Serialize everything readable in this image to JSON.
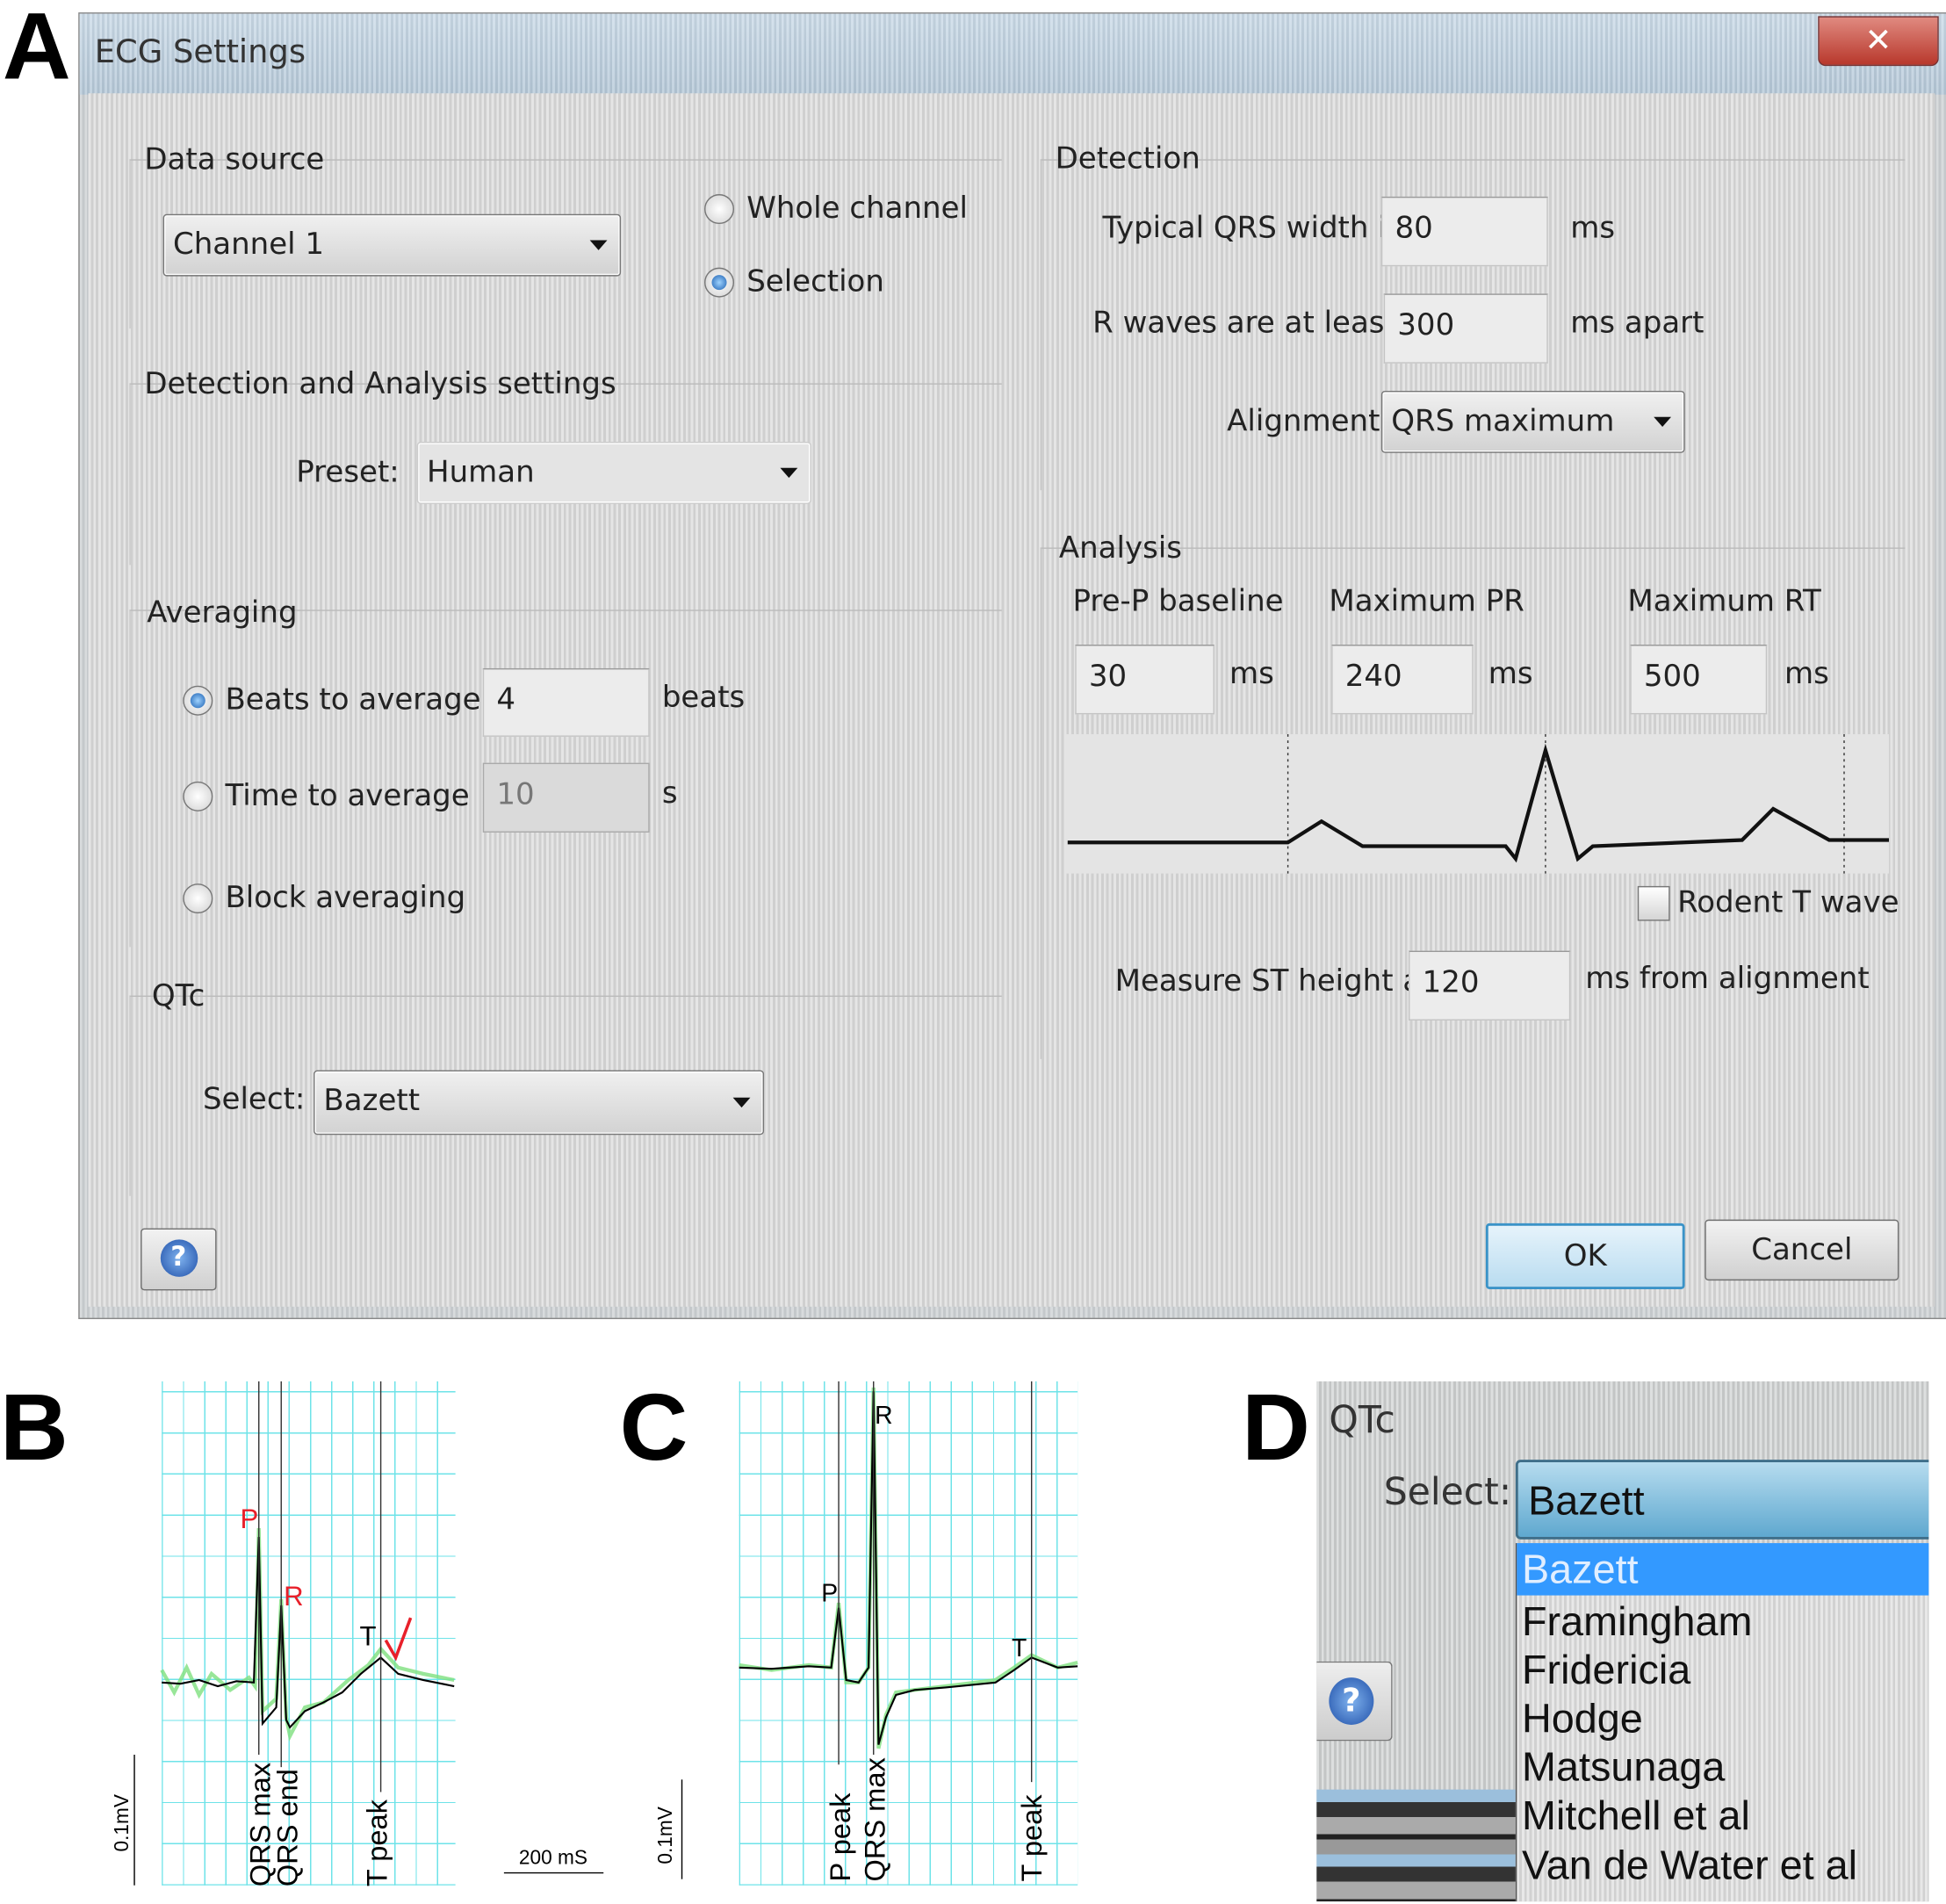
{
  "panel_labels": {
    "a": "A",
    "b": "B",
    "c": "C",
    "d": "D"
  },
  "dialog": {
    "title": "ECG Settings",
    "close_icon": "close-x-icon",
    "data_source": {
      "heading": "Data source",
      "channel": "Channel 1",
      "options": [
        "Whole channel",
        "Selection"
      ],
      "selected": "Selection"
    },
    "detection_analysis": {
      "heading": "Detection and Analysis settings",
      "preset_label": "Preset:",
      "preset": "Human"
    },
    "averaging": {
      "heading": "Averaging",
      "beats_label": "Beats to average",
      "beats_value": "4",
      "beats_unit": "beats",
      "time_label": "Time to average",
      "time_value": "10",
      "time_unit": "s",
      "block_label": "Block averaging",
      "selected": "Beats to average"
    },
    "qtc": {
      "heading": "QTc",
      "select_label": "Select:",
      "value": "Bazett"
    },
    "detection": {
      "heading": "Detection",
      "qrs_label": "Typical QRS width is",
      "qrs_value": "80",
      "qrs_unit": "ms",
      "rwave_label": "R waves are at least",
      "rwave_value": "300",
      "rwave_unit": "ms apart",
      "alignment_label": "Alignment:",
      "alignment": "QRS maximum"
    },
    "analysis": {
      "heading": "Analysis",
      "prep_label": "Pre-P baseline",
      "prep_value": "30",
      "prep_unit": "ms",
      "pr_label": "Maximum PR",
      "pr_value": "240",
      "pr_unit": "ms",
      "rt_label": "Maximum RT",
      "rt_value": "500",
      "rt_unit": "ms",
      "rodent_label": "Rodent T wave",
      "rodent_checked": false,
      "st_label": "Measure ST height at",
      "st_value": "120",
      "st_unit": "ms from alignment"
    },
    "help_icon": "question-mark-icon",
    "ok": "OK",
    "cancel": "Cancel"
  },
  "panel_b": {
    "markers": [
      "QRS max",
      "QRS end",
      "T peak"
    ],
    "wave_labels": [
      "P",
      "R",
      "T"
    ],
    "scale_v": "0.1mV",
    "scale_t": "200 mS",
    "colors": {
      "grid": "#5fe0e6",
      "trace": "#000000",
      "raw": "#7ee07e",
      "annotation": "#e8202a"
    }
  },
  "panel_c": {
    "markers": [
      "P peak",
      "QRS max",
      "T peak"
    ],
    "wave_labels": [
      "R",
      "P",
      "T"
    ],
    "scale_v": "0.1mV"
  },
  "panel_d": {
    "heading": "QTc",
    "select_label": "Select:",
    "value": "Bazett",
    "options": [
      "Bazett",
      "Framingham",
      "Fridericia",
      "Hodge",
      "Matsunaga",
      "Mitchell et al",
      "Van de Water et al"
    ],
    "highlighted": "Bazett",
    "highlight_color": "#3399ff"
  }
}
